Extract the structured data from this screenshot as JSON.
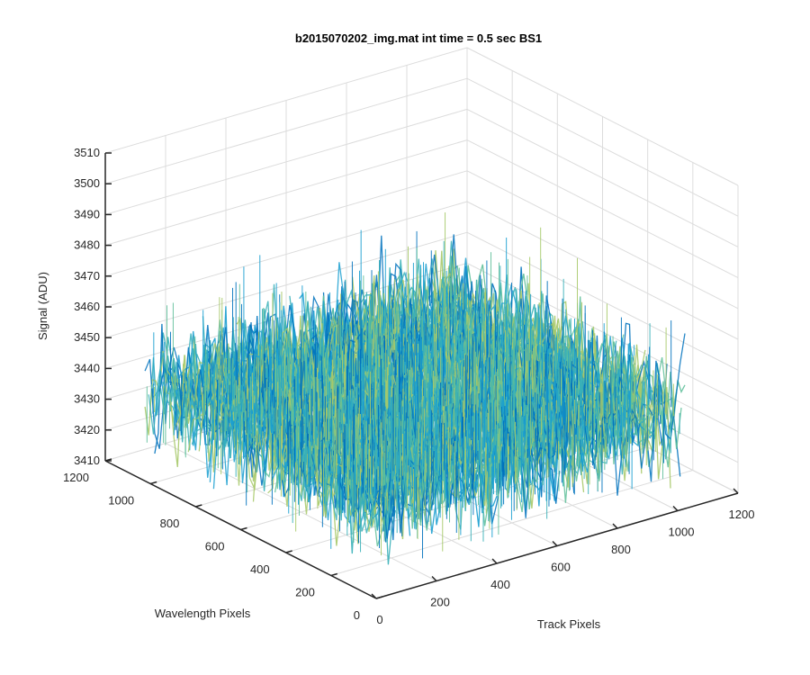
{
  "chart_data": {
    "type": "surface",
    "title": "b2015070202_img.mat int time = 0.5 sec   BS1",
    "xlabel": "Track Pixels",
    "ylabel": "Wavelength Pixels",
    "zlabel": "Signal (ADU)",
    "xlim": [
      0,
      1200
    ],
    "ylim": [
      0,
      1200
    ],
    "zlim": [
      3410,
      3510
    ],
    "x_ticks": [
      "0",
      "200",
      "400",
      "600",
      "800",
      "1000",
      "1200"
    ],
    "y_ticks": [
      "0",
      "200",
      "400",
      "600",
      "800",
      "1000",
      "1200"
    ],
    "z_ticks": [
      "3410",
      "3420",
      "3430",
      "3440",
      "3450",
      "3460",
      "3470",
      "3480",
      "3490",
      "3500",
      "3510"
    ],
    "x_extent": [
      0,
      1024
    ],
    "y_extent": [
      0,
      1024
    ],
    "z_mean": 3441,
    "z_min_approx": 3418,
    "z_max_approx": 3490,
    "grid": true,
    "colormap": [
      "#0072bd",
      "#1a9fd0",
      "#38b0b8",
      "#5fbf9a",
      "#a7c96a"
    ]
  }
}
